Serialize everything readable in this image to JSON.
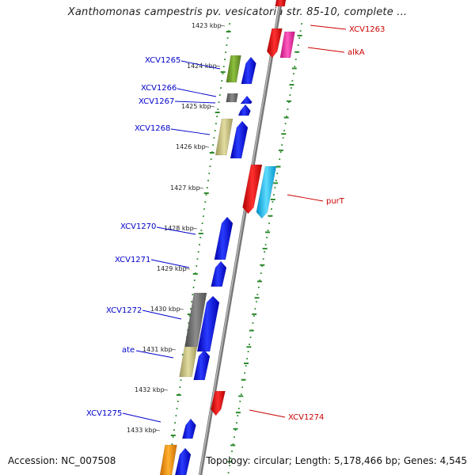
{
  "title": "Xanthomonas campestris pv. vesicatoria str. 85-10, complete ...",
  "footer": {
    "accession": "Accession: NC_007508",
    "topology": "Topology: circular; Length: 5,178,466 bp; Genes: 4,545"
  },
  "kbp_ticks": [
    {
      "label": "1423 kbp",
      "kbp": 1423
    },
    {
      "label": "1424 kbp",
      "kbp": 1424
    },
    {
      "label": "1425 kbp",
      "kbp": 1425
    },
    {
      "label": "1426 kbp",
      "kbp": 1426
    },
    {
      "label": "1427 kbp",
      "kbp": 1427
    },
    {
      "label": "1428 kbp",
      "kbp": 1428
    },
    {
      "label": "1429 kbp",
      "kbp": 1429
    },
    {
      "label": "1430 kbp",
      "kbp": 1430
    },
    {
      "label": "1431 kbp",
      "kbp": 1431
    },
    {
      "label": "1432 kbp",
      "kbp": 1432
    },
    {
      "label": "1433 kbp",
      "kbp": 1433
    }
  ],
  "genes": [
    {
      "name": "XCV1263",
      "side": "right"
    },
    {
      "name": "alkA",
      "side": "right"
    },
    {
      "name": "XCV1265",
      "side": "left"
    },
    {
      "name": "XCV1266",
      "side": "left"
    },
    {
      "name": "XCV1267",
      "side": "left"
    },
    {
      "name": "XCV1268",
      "side": "left"
    },
    {
      "name": "purT",
      "side": "right"
    },
    {
      "name": "XCV1270",
      "side": "left"
    },
    {
      "name": "XCV1271",
      "side": "left"
    },
    {
      "name": "XCV1272",
      "side": "left"
    },
    {
      "name": "ate",
      "side": "left"
    },
    {
      "name": "XCV1274",
      "side": "right"
    },
    {
      "name": "XCV1275",
      "side": "left"
    }
  ],
  "colors": {
    "left_label": "#0000cc",
    "right_label": "#cc0000",
    "ruler_dots": "#2e8b2e",
    "backbone": "#8a8a8a"
  }
}
